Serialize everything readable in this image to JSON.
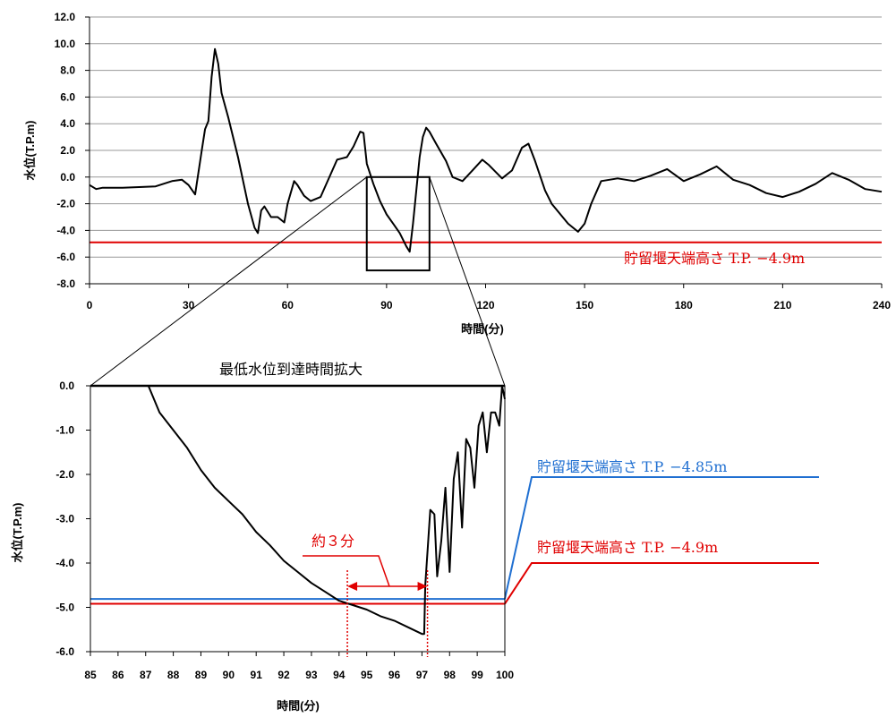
{
  "colors": {
    "data": "#000000",
    "red": "#e00000",
    "blue": "#1f6fd1",
    "grid": "#999999"
  },
  "chart_data": [
    {
      "type": "line",
      "xlabel": "時間(分)",
      "ylabel": "水位(T.P.m)",
      "xlim": [
        0,
        240
      ],
      "ylim": [
        -8,
        12
      ],
      "xticks": [
        "0",
        "30",
        "60",
        "90",
        "120",
        "150",
        "180",
        "210",
        "240"
      ],
      "yticks": [
        "-8.0",
        "-6.0",
        "-4.0",
        "-2.0",
        "0.0",
        "2.0",
        "4.0",
        "6.0",
        "8.0",
        "10.0",
        "12.0"
      ],
      "grid": true,
      "series": [
        {
          "x": [
            0,
            2,
            4,
            10,
            20,
            25,
            28,
            30,
            32,
            34,
            35,
            36,
            37,
            38,
            39,
            40,
            42,
            45,
            48,
            50,
            51,
            52,
            53,
            55,
            57,
            59,
            60,
            62,
            63,
            65,
            67,
            70,
            75,
            78,
            80,
            82,
            83,
            84,
            86,
            88,
            90,
            92,
            94,
            96,
            97,
            98,
            99,
            100,
            101,
            102,
            103,
            105,
            108,
            110,
            113,
            116,
            119,
            121,
            125,
            128,
            131,
            133,
            135,
            138,
            140,
            145,
            148,
            150,
            152,
            155,
            160,
            165,
            170,
            175,
            180,
            185,
            190,
            195,
            200,
            205,
            210,
            215,
            220,
            225,
            230,
            235,
            240
          ],
          "y": [
            -0.6,
            -0.9,
            -0.8,
            -0.8,
            -0.7,
            -0.3,
            -0.2,
            -0.6,
            -1.3,
            2,
            3.6,
            4.2,
            7.5,
            9.6,
            8.5,
            6.3,
            4.5,
            1.5,
            -2,
            -3.8,
            -4.2,
            -2.5,
            -2.2,
            -3,
            -3,
            -3.4,
            -2,
            -0.3,
            -0.6,
            -1.4,
            -1.8,
            -1.5,
            1.3,
            1.5,
            2.3,
            3.4,
            3.3,
            1,
            -0.5,
            -1.8,
            -2.8,
            -3.5,
            -4.2,
            -5.2,
            -5.6,
            -3.5,
            -1,
            1.5,
            3,
            3.7,
            3.4,
            2.5,
            1.2,
            0,
            -0.3,
            0.5,
            1.3,
            0.9,
            -0.1,
            0.5,
            2.2,
            2.5,
            1.2,
            -1,
            -2,
            -3.5,
            -4.1,
            -3.5,
            -2,
            -0.3,
            -0.1,
            -0.3,
            0.1,
            0.6,
            -0.3,
            0.2,
            0.8,
            -0.2,
            -0.6,
            -1.2,
            -1.5,
            -1.1,
            -0.5,
            0.3,
            -0.2,
            -0.9,
            -1.1
          ]
        }
      ],
      "reference_line": {
        "y": -4.9,
        "label": "貯留堰天端高さ T.P. −4.9m"
      },
      "zoom_box": {
        "x": [
          84,
          103
        ],
        "y": [
          -7,
          0
        ]
      }
    },
    {
      "type": "line",
      "title": "最低水位到達時間拡大",
      "xlabel": "時間(分)",
      "ylabel": "水位(T.P.m)",
      "xlim": [
        85,
        100
      ],
      "ylim": [
        -6,
        0
      ],
      "xticks": [
        "85",
        "86",
        "87",
        "88",
        "89",
        "90",
        "91",
        "92",
        "93",
        "94",
        "95",
        "96",
        "97",
        "98",
        "99",
        "100"
      ],
      "yticks": [
        "-6.0",
        "-5.0",
        "-4.0",
        "-3.0",
        "-2.0",
        "-1.0",
        "0.0"
      ],
      "grid": false,
      "series": [
        {
          "x": [
            87.1,
            87.5,
            88,
            88.5,
            89,
            89.5,
            90,
            90.5,
            91,
            91.5,
            92,
            92.5,
            93,
            93.5,
            94,
            94.5,
            95,
            95.5,
            96,
            96.5,
            97,
            97.08,
            97.12,
            97.3,
            97.45,
            97.55,
            97.7,
            97.85,
            98,
            98.15,
            98.3,
            98.45,
            98.6,
            98.75,
            98.9,
            99.05,
            99.2,
            99.35,
            99.5,
            99.65,
            99.8,
            99.9,
            100
          ],
          "y": [
            0,
            -0.6,
            -1,
            -1.4,
            -1.9,
            -2.3,
            -2.6,
            -2.9,
            -3.3,
            -3.6,
            -3.95,
            -4.2,
            -4.45,
            -4.65,
            -4.85,
            -4.95,
            -5.05,
            -5.2,
            -5.3,
            -5.45,
            -5.6,
            -5.6,
            -4.5,
            -2.8,
            -2.9,
            -4.3,
            -3.5,
            -2.3,
            -4.2,
            -2.1,
            -1.5,
            -3.2,
            -1.2,
            -1.4,
            -2.3,
            -0.9,
            -0.6,
            -1.5,
            -0.6,
            -0.6,
            -0.9,
            0,
            -0.3
          ]
        }
      ],
      "reference_lines": [
        {
          "y": -4.85,
          "label": "貯留堰天端高さ T.P. −4.85m",
          "color": "#1f6fd1"
        },
        {
          "y": -4.9,
          "label": "貯留堰天端高さ T.P. −4.9m",
          "color": "#e00000"
        }
      ],
      "span_annotation": {
        "x": [
          94.3,
          97.2
        ],
        "label": "約３分"
      }
    }
  ]
}
